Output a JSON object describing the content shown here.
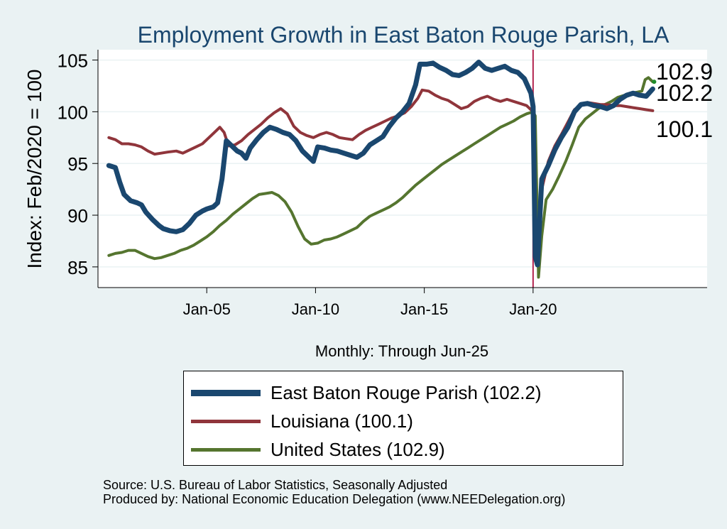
{
  "chart_data": {
    "type": "line",
    "title": "Employment Growth in East Baton Rouge Parish, LA",
    "xlabel": "Monthly: Through Jun-25",
    "ylabel": "Index: Feb/2020 = 100",
    "ylim": [
      83,
      106
    ],
    "yticks": [
      85,
      90,
      95,
      100,
      105
    ],
    "xlim": [
      2000.0,
      2028.0
    ],
    "xticks": [
      {
        "x": 2005.0,
        "label": "Jan-05"
      },
      {
        "x": 2010.0,
        "label": "Jan-10"
      },
      {
        "x": 2015.0,
        "label": "Jan-15"
      },
      {
        "x": 2020.0,
        "label": "Jan-20"
      }
    ],
    "vline_x": 2020.0,
    "grid": true,
    "legend_position": "bottom",
    "series": [
      {
        "name": "East Baton Rouge Parish  (102.2)",
        "color": "#1a476f",
        "end_label": "102.2",
        "points": [
          [
            2000.5,
            94.8
          ],
          [
            2000.8,
            94.6
          ],
          [
            2001.0,
            93.2
          ],
          [
            2001.2,
            92.0
          ],
          [
            2001.5,
            91.4
          ],
          [
            2001.8,
            91.2
          ],
          [
            2002.0,
            91.0
          ],
          [
            2002.2,
            90.3
          ],
          [
            2002.5,
            89.6
          ],
          [
            2002.8,
            89.0
          ],
          [
            2003.0,
            88.7
          ],
          [
            2003.3,
            88.5
          ],
          [
            2003.6,
            88.4
          ],
          [
            2003.9,
            88.6
          ],
          [
            2004.2,
            89.2
          ],
          [
            2004.5,
            90.0
          ],
          [
            2004.8,
            90.4
          ],
          [
            2005.0,
            90.6
          ],
          [
            2005.3,
            90.8
          ],
          [
            2005.5,
            91.2
          ],
          [
            2005.7,
            93.5
          ],
          [
            2005.9,
            97.2
          ],
          [
            2006.1,
            96.8
          ],
          [
            2006.4,
            96.2
          ],
          [
            2006.6,
            96.0
          ],
          [
            2006.8,
            95.5
          ],
          [
            2007.0,
            96.5
          ],
          [
            2007.3,
            97.3
          ],
          [
            2007.6,
            98.0
          ],
          [
            2007.9,
            98.5
          ],
          [
            2008.2,
            98.3
          ],
          [
            2008.5,
            98.0
          ],
          [
            2008.8,
            97.8
          ],
          [
            2009.1,
            97.2
          ],
          [
            2009.4,
            96.2
          ],
          [
            2009.7,
            95.6
          ],
          [
            2009.9,
            95.2
          ],
          [
            2010.1,
            96.6
          ],
          [
            2010.4,
            96.5
          ],
          [
            2010.7,
            96.3
          ],
          [
            2011.0,
            96.2
          ],
          [
            2011.3,
            96.0
          ],
          [
            2011.6,
            95.8
          ],
          [
            2011.9,
            95.6
          ],
          [
            2012.2,
            96.0
          ],
          [
            2012.5,
            96.8
          ],
          [
            2012.8,
            97.2
          ],
          [
            2013.1,
            97.6
          ],
          [
            2013.4,
            98.6
          ],
          [
            2013.7,
            99.4
          ],
          [
            2014.0,
            100.0
          ],
          [
            2014.3,
            100.8
          ],
          [
            2014.6,
            102.6
          ],
          [
            2014.8,
            104.6
          ],
          [
            2015.1,
            104.6
          ],
          [
            2015.4,
            104.7
          ],
          [
            2015.7,
            104.3
          ],
          [
            2016.0,
            104.0
          ],
          [
            2016.3,
            103.6
          ],
          [
            2016.6,
            103.5
          ],
          [
            2016.9,
            103.8
          ],
          [
            2017.2,
            104.2
          ],
          [
            2017.5,
            104.8
          ],
          [
            2017.8,
            104.2
          ],
          [
            2018.1,
            104.0
          ],
          [
            2018.4,
            104.2
          ],
          [
            2018.7,
            104.4
          ],
          [
            2019.0,
            104.0
          ],
          [
            2019.3,
            103.8
          ],
          [
            2019.6,
            103.2
          ],
          [
            2019.9,
            101.8
          ],
          [
            2020.0,
            100.5
          ],
          [
            2020.1,
            86.0
          ],
          [
            2020.2,
            85.2
          ],
          [
            2020.4,
            93.5
          ],
          [
            2020.7,
            94.8
          ],
          [
            2021.0,
            96.3
          ],
          [
            2021.3,
            97.5
          ],
          [
            2021.6,
            98.5
          ],
          [
            2021.9,
            100.0
          ],
          [
            2022.2,
            100.7
          ],
          [
            2022.5,
            100.8
          ],
          [
            2022.8,
            100.6
          ],
          [
            2023.1,
            100.5
          ],
          [
            2023.4,
            100.3
          ],
          [
            2023.7,
            100.6
          ],
          [
            2024.0,
            101.2
          ],
          [
            2024.3,
            101.6
          ],
          [
            2024.6,
            101.8
          ],
          [
            2024.9,
            101.6
          ],
          [
            2025.2,
            101.5
          ],
          [
            2025.5,
            102.2
          ]
        ]
      },
      {
        "name": "Louisiana (100.1)",
        "color": "#90353b",
        "end_label": "100.1",
        "points": [
          [
            2000.5,
            97.5
          ],
          [
            2000.8,
            97.3
          ],
          [
            2001.1,
            96.9
          ],
          [
            2001.4,
            96.9
          ],
          [
            2001.7,
            96.8
          ],
          [
            2002.0,
            96.6
          ],
          [
            2002.3,
            96.2
          ],
          [
            2002.6,
            95.9
          ],
          [
            2002.9,
            96.0
          ],
          [
            2003.2,
            96.1
          ],
          [
            2003.6,
            96.2
          ],
          [
            2003.9,
            96.0
          ],
          [
            2004.2,
            96.3
          ],
          [
            2004.5,
            96.6
          ],
          [
            2004.8,
            96.9
          ],
          [
            2005.1,
            97.5
          ],
          [
            2005.4,
            98.1
          ],
          [
            2005.6,
            98.5
          ],
          [
            2005.8,
            98.0
          ],
          [
            2006.0,
            96.7
          ],
          [
            2006.3,
            96.8
          ],
          [
            2006.6,
            97.2
          ],
          [
            2006.9,
            97.8
          ],
          [
            2007.2,
            98.3
          ],
          [
            2007.5,
            98.8
          ],
          [
            2007.8,
            99.4
          ],
          [
            2008.1,
            99.9
          ],
          [
            2008.4,
            100.3
          ],
          [
            2008.7,
            99.8
          ],
          [
            2009.0,
            98.6
          ],
          [
            2009.3,
            98.0
          ],
          [
            2009.6,
            97.7
          ],
          [
            2009.9,
            97.5
          ],
          [
            2010.2,
            97.8
          ],
          [
            2010.5,
            98.0
          ],
          [
            2010.8,
            97.8
          ],
          [
            2011.1,
            97.5
          ],
          [
            2011.4,
            97.4
          ],
          [
            2011.7,
            97.3
          ],
          [
            2012.0,
            97.8
          ],
          [
            2012.3,
            98.2
          ],
          [
            2012.6,
            98.5
          ],
          [
            2012.9,
            98.8
          ],
          [
            2013.2,
            99.1
          ],
          [
            2013.5,
            99.4
          ],
          [
            2013.8,
            99.6
          ],
          [
            2014.1,
            99.9
          ],
          [
            2014.4,
            100.5
          ],
          [
            2014.7,
            101.3
          ],
          [
            2014.9,
            102.1
          ],
          [
            2015.2,
            102.0
          ],
          [
            2015.5,
            101.6
          ],
          [
            2015.8,
            101.3
          ],
          [
            2016.1,
            101.1
          ],
          [
            2016.4,
            100.7
          ],
          [
            2016.7,
            100.3
          ],
          [
            2017.0,
            100.5
          ],
          [
            2017.3,
            101.0
          ],
          [
            2017.6,
            101.3
          ],
          [
            2017.9,
            101.5
          ],
          [
            2018.2,
            101.2
          ],
          [
            2018.5,
            101.0
          ],
          [
            2018.8,
            101.2
          ],
          [
            2019.1,
            101.0
          ],
          [
            2019.4,
            100.8
          ],
          [
            2019.7,
            100.6
          ],
          [
            2020.0,
            100.0
          ],
          [
            2020.1,
            88.5
          ],
          [
            2020.25,
            87.0
          ],
          [
            2020.4,
            92.5
          ],
          [
            2020.7,
            95.2
          ],
          [
            2021.0,
            96.7
          ],
          [
            2021.3,
            97.8
          ],
          [
            2021.6,
            99.0
          ],
          [
            2021.9,
            100.2
          ],
          [
            2022.2,
            100.7
          ],
          [
            2022.5,
            100.9
          ],
          [
            2022.8,
            100.8
          ],
          [
            2023.1,
            100.7
          ],
          [
            2023.4,
            100.7
          ],
          [
            2023.7,
            100.6
          ],
          [
            2024.0,
            100.6
          ],
          [
            2024.3,
            100.5
          ],
          [
            2024.6,
            100.4
          ],
          [
            2024.9,
            100.3
          ],
          [
            2025.2,
            100.2
          ],
          [
            2025.5,
            100.1
          ]
        ]
      },
      {
        "name": "United States (102.9)",
        "color": "#55752f",
        "end_label": "102.9",
        "points": [
          [
            2000.5,
            86.1
          ],
          [
            2000.8,
            86.3
          ],
          [
            2001.1,
            86.4
          ],
          [
            2001.4,
            86.6
          ],
          [
            2001.7,
            86.6
          ],
          [
            2002.0,
            86.3
          ],
          [
            2002.3,
            86.0
          ],
          [
            2002.6,
            85.8
          ],
          [
            2002.9,
            85.9
          ],
          [
            2003.2,
            86.1
          ],
          [
            2003.5,
            86.3
          ],
          [
            2003.8,
            86.6
          ],
          [
            2004.1,
            86.8
          ],
          [
            2004.4,
            87.1
          ],
          [
            2004.7,
            87.5
          ],
          [
            2005.0,
            87.9
          ],
          [
            2005.3,
            88.4
          ],
          [
            2005.6,
            89.0
          ],
          [
            2005.9,
            89.5
          ],
          [
            2006.2,
            90.1
          ],
          [
            2006.5,
            90.6
          ],
          [
            2006.8,
            91.1
          ],
          [
            2007.1,
            91.6
          ],
          [
            2007.4,
            92.0
          ],
          [
            2007.7,
            92.1
          ],
          [
            2008.0,
            92.2
          ],
          [
            2008.3,
            91.9
          ],
          [
            2008.6,
            91.3
          ],
          [
            2008.9,
            90.3
          ],
          [
            2009.2,
            88.9
          ],
          [
            2009.5,
            87.7
          ],
          [
            2009.8,
            87.2
          ],
          [
            2010.1,
            87.3
          ],
          [
            2010.4,
            87.6
          ],
          [
            2010.7,
            87.7
          ],
          [
            2011.0,
            87.9
          ],
          [
            2011.3,
            88.2
          ],
          [
            2011.6,
            88.5
          ],
          [
            2011.9,
            88.8
          ],
          [
            2012.2,
            89.4
          ],
          [
            2012.5,
            89.9
          ],
          [
            2012.8,
            90.2
          ],
          [
            2013.1,
            90.5
          ],
          [
            2013.4,
            90.8
          ],
          [
            2013.7,
            91.2
          ],
          [
            2014.0,
            91.7
          ],
          [
            2014.3,
            92.3
          ],
          [
            2014.6,
            92.9
          ],
          [
            2014.9,
            93.4
          ],
          [
            2015.2,
            93.9
          ],
          [
            2015.5,
            94.4
          ],
          [
            2015.8,
            94.9
          ],
          [
            2016.1,
            95.3
          ],
          [
            2016.4,
            95.7
          ],
          [
            2016.7,
            96.1
          ],
          [
            2017.0,
            96.5
          ],
          [
            2017.3,
            96.9
          ],
          [
            2017.6,
            97.3
          ],
          [
            2017.9,
            97.7
          ],
          [
            2018.2,
            98.1
          ],
          [
            2018.5,
            98.5
          ],
          [
            2018.8,
            98.8
          ],
          [
            2019.1,
            99.1
          ],
          [
            2019.4,
            99.5
          ],
          [
            2019.7,
            99.8
          ],
          [
            2020.0,
            100.0
          ],
          [
            2020.1,
            99.6
          ],
          [
            2020.25,
            84.0
          ],
          [
            2020.4,
            88.0
          ],
          [
            2020.6,
            91.5
          ],
          [
            2020.9,
            92.5
          ],
          [
            2021.2,
            93.8
          ],
          [
            2021.5,
            95.2
          ],
          [
            2021.8,
            96.8
          ],
          [
            2022.1,
            98.5
          ],
          [
            2022.4,
            99.3
          ],
          [
            2022.7,
            99.8
          ],
          [
            2023.0,
            100.3
          ],
          [
            2023.3,
            100.7
          ],
          [
            2023.6,
            101.0
          ],
          [
            2023.9,
            101.4
          ],
          [
            2024.2,
            101.6
          ],
          [
            2024.5,
            101.8
          ],
          [
            2024.8,
            101.9
          ],
          [
            2025.0,
            102.0
          ],
          [
            2025.15,
            103.1
          ],
          [
            2025.3,
            103.3
          ],
          [
            2025.5,
            102.9
          ]
        ]
      }
    ]
  },
  "notes": {
    "source": "Source: U.S. Bureau of Labor Statistics, Seasonally Adjusted",
    "produced": "Produced by: National Economic Education Delegation (www.NEEDelegation.org)"
  }
}
